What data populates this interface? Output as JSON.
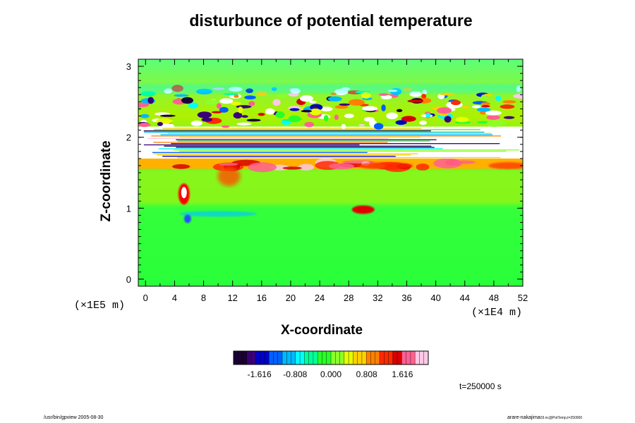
{
  "chart_data": {
    "type": "heatmap",
    "title": "disturbunce of potential temperature",
    "xlabel": "X-coordinate",
    "ylabel": "Z-coordinate",
    "x_unit": "(×1E4 m)",
    "y_unit": "(×1E5 m)",
    "x_ticks": [
      "0",
      "4",
      "8",
      "12",
      "16",
      "20",
      "24",
      "28",
      "32",
      "36",
      "40",
      "44",
      "48",
      "52"
    ],
    "y_ticks": [
      "0",
      "1",
      "2",
      "3"
    ],
    "xlim": [
      -1,
      52
    ],
    "ylim": [
      -0.1,
      3.1
    ],
    "colorbar": {
      "ticks": [
        "-1.616",
        "-0.808",
        "0.000",
        "0.808",
        "1.616"
      ],
      "range": [
        -2.2,
        2.2
      ],
      "colors": [
        "#1a0033",
        "#3a0078",
        "#0000c8",
        "#0060ff",
        "#00b8ff",
        "#00ffff",
        "#00ff9a",
        "#28ff28",
        "#8cff28",
        "#e6ff00",
        "#ffd000",
        "#ff8000",
        "#ff2a00",
        "#d80000",
        "#ff6090",
        "#ffc8e6"
      ]
    },
    "time_label": "t=250000 s",
    "field_regions": [
      {
        "z_range": [
          -0.1,
          1.55
        ],
        "description_level": 0.1
      },
      {
        "z_range": [
          1.55,
          1.7
        ],
        "description_level": 1.4
      },
      {
        "z_range": [
          1.7,
          2.15
        ],
        "description_level": 0.0
      },
      {
        "z_range": [
          2.15,
          2.7
        ],
        "description_level": 0.3
      },
      {
        "z_range": [
          2.7,
          3.1
        ],
        "description_level": 0.05
      }
    ]
  },
  "footer": {
    "left": "/usr/bin/gpview 2005-08-30",
    "right_main": "arare-nakajima",
    "right_sub": "03.nc@PotTemp,t=250000"
  }
}
